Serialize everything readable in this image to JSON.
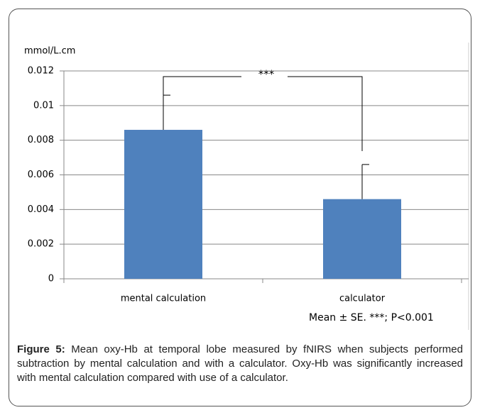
{
  "chart_data": {
    "type": "bar",
    "y_label": "mmol/L.cm",
    "categories": [
      "mental calculation",
      "calculator"
    ],
    "values": [
      0.0086,
      0.0046
    ],
    "errors": [
      0.002,
      0.002
    ],
    "color": "#4f81bd",
    "ylim": [
      0,
      0.012
    ],
    "yticks": [
      0,
      0.002,
      0.004,
      0.006,
      0.008,
      0.01,
      0.012
    ],
    "grid": true,
    "significance": "***",
    "note": "Mean ± SE. ***; P<0.001"
  },
  "caption": {
    "label": "Figure 5:",
    "text": "Mean oxy-Hb at temporal lobe measured by fNIRS when subjects performed subtraction by mental calculation and with a calculator. Oxy-Hb was significantly increased with mental calculation compared with use of a calculator."
  }
}
